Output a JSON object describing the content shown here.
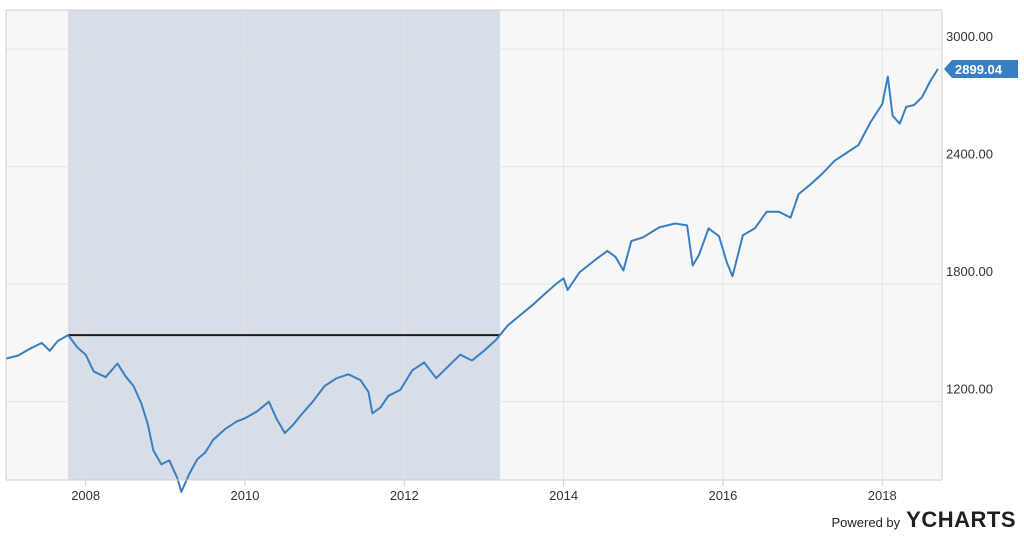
{
  "chart_data": {
    "type": "line",
    "title": "",
    "xlabel": "",
    "ylabel": "",
    "x_range": [
      2007.0,
      2018.75
    ],
    "y_range": [
      800,
      3200
    ],
    "x_ticks": [
      2008,
      2010,
      2012,
      2014,
      2016,
      2018
    ],
    "x_tick_labels": [
      "2008",
      "2010",
      "2012",
      "2014",
      "2016",
      "2018"
    ],
    "y_ticks": [
      1200,
      1800,
      2400,
      3000
    ],
    "y_tick_labels": [
      "1200.00",
      "1800.00",
      "2400.00",
      "3000.00"
    ],
    "grid": true,
    "series": [
      {
        "color": "#3a7fc1",
        "points": [
          [
            2007.0,
            1420
          ],
          [
            2007.15,
            1435
          ],
          [
            2007.3,
            1470
          ],
          [
            2007.45,
            1500
          ],
          [
            2007.55,
            1460
          ],
          [
            2007.65,
            1510
          ],
          [
            2007.78,
            1540
          ],
          [
            2007.9,
            1475
          ],
          [
            2008.0,
            1440
          ],
          [
            2008.1,
            1355
          ],
          [
            2008.25,
            1325
          ],
          [
            2008.4,
            1395
          ],
          [
            2008.5,
            1330
          ],
          [
            2008.6,
            1280
          ],
          [
            2008.7,
            1190
          ],
          [
            2008.78,
            1085
          ],
          [
            2008.85,
            950
          ],
          [
            2008.95,
            880
          ],
          [
            2009.05,
            900
          ],
          [
            2009.15,
            810
          ],
          [
            2009.2,
            740
          ],
          [
            2009.3,
            830
          ],
          [
            2009.4,
            905
          ],
          [
            2009.5,
            940
          ],
          [
            2009.6,
            1005
          ],
          [
            2009.75,
            1060
          ],
          [
            2009.9,
            1100
          ],
          [
            2010.0,
            1115
          ],
          [
            2010.15,
            1150
          ],
          [
            2010.3,
            1200
          ],
          [
            2010.4,
            1110
          ],
          [
            2010.5,
            1040
          ],
          [
            2010.6,
            1080
          ],
          [
            2010.7,
            1130
          ],
          [
            2010.85,
            1200
          ],
          [
            2011.0,
            1280
          ],
          [
            2011.15,
            1320
          ],
          [
            2011.3,
            1340
          ],
          [
            2011.45,
            1310
          ],
          [
            2011.55,
            1250
          ],
          [
            2011.6,
            1140
          ],
          [
            2011.7,
            1170
          ],
          [
            2011.8,
            1230
          ],
          [
            2011.95,
            1260
          ],
          [
            2012.1,
            1360
          ],
          [
            2012.25,
            1400
          ],
          [
            2012.4,
            1320
          ],
          [
            2012.55,
            1380
          ],
          [
            2012.7,
            1440
          ],
          [
            2012.85,
            1410
          ],
          [
            2013.0,
            1460
          ],
          [
            2013.15,
            1515
          ],
          [
            2013.3,
            1590
          ],
          [
            2013.45,
            1640
          ],
          [
            2013.6,
            1690
          ],
          [
            2013.75,
            1745
          ],
          [
            2013.9,
            1800
          ],
          [
            2014.0,
            1830
          ],
          [
            2014.05,
            1770
          ],
          [
            2014.2,
            1860
          ],
          [
            2014.4,
            1925
          ],
          [
            2014.55,
            1970
          ],
          [
            2014.65,
            1940
          ],
          [
            2014.75,
            1870
          ],
          [
            2014.85,
            2020
          ],
          [
            2015.0,
            2040
          ],
          [
            2015.2,
            2090
          ],
          [
            2015.4,
            2110
          ],
          [
            2015.55,
            2100
          ],
          [
            2015.62,
            1895
          ],
          [
            2015.7,
            1950
          ],
          [
            2015.82,
            2085
          ],
          [
            2015.95,
            2045
          ],
          [
            2016.05,
            1910
          ],
          [
            2016.12,
            1840
          ],
          [
            2016.25,
            2050
          ],
          [
            2016.4,
            2085
          ],
          [
            2016.55,
            2170
          ],
          [
            2016.7,
            2170
          ],
          [
            2016.85,
            2140
          ],
          [
            2016.95,
            2260
          ],
          [
            2017.1,
            2310
          ],
          [
            2017.25,
            2365
          ],
          [
            2017.4,
            2430
          ],
          [
            2017.55,
            2470
          ],
          [
            2017.7,
            2510
          ],
          [
            2017.85,
            2625
          ],
          [
            2018.0,
            2720
          ],
          [
            2018.07,
            2860
          ],
          [
            2018.13,
            2660
          ],
          [
            2018.22,
            2620
          ],
          [
            2018.3,
            2705
          ],
          [
            2018.4,
            2715
          ],
          [
            2018.5,
            2755
          ],
          [
            2018.6,
            2835
          ],
          [
            2018.7,
            2899.04
          ]
        ]
      }
    ],
    "last_value_label": "2899.04",
    "annotations": {
      "shaded_region": {
        "x0": 2007.78,
        "x1": 2013.2,
        "color": "#d8dee8"
      },
      "reference_line": {
        "x0": 2007.78,
        "x1": 2013.2,
        "y": 1540,
        "color": "#1a1a1a"
      }
    }
  },
  "branding": {
    "powered_by": "Powered by",
    "logo": "YCHARTS"
  },
  "colors": {
    "plot_background": "#f7f7f7",
    "grid": "#e2e2e2",
    "axis": "#cfcfcf",
    "line": "#3a7fc1",
    "tag": "#3a7fc1"
  }
}
